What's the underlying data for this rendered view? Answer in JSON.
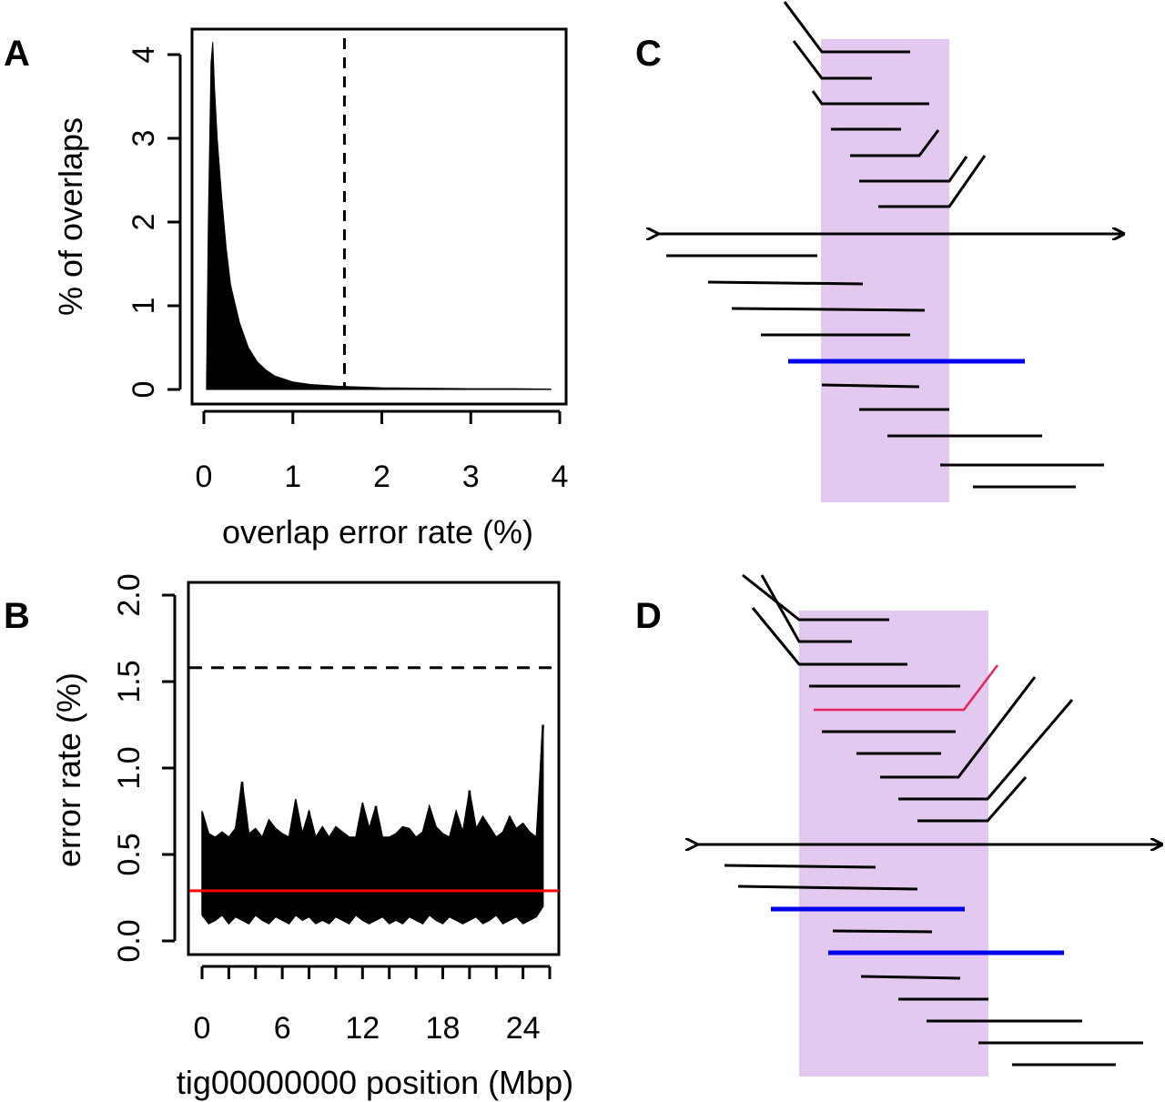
{
  "panels": {
    "A": "A",
    "B": "B",
    "C": "C",
    "D": "D"
  },
  "chart_data": [
    {
      "panel": "A",
      "type": "area",
      "title": "",
      "xlabel": "overlap error rate (%)",
      "ylabel": "% of overlaps",
      "xlim": [
        0,
        4
      ],
      "ylim": [
        0,
        4
      ],
      "xticks": [
        "0",
        "1",
        "2",
        "3",
        "4"
      ],
      "yticks": [
        "0",
        "1",
        "2",
        "3",
        "4"
      ],
      "x": [
        0.03,
        0.05,
        0.08,
        0.1,
        0.12,
        0.15,
        0.2,
        0.25,
        0.3,
        0.4,
        0.5,
        0.6,
        0.7,
        0.8,
        1.0,
        1.2,
        1.5,
        2.0,
        2.5,
        3.0,
        3.5,
        3.9
      ],
      "y": [
        0.1,
        2.0,
        3.9,
        4.15,
        3.6,
        3.0,
        2.3,
        1.7,
        1.25,
        0.8,
        0.5,
        0.33,
        0.23,
        0.16,
        0.09,
        0.06,
        0.04,
        0.02,
        0.015,
        0.01,
        0.01,
        0.005
      ],
      "threshold": {
        "x": 1.58,
        "style": "dashed"
      }
    },
    {
      "panel": "B",
      "type": "line",
      "title": "",
      "xlabel": "tig00000000 position (Mbp)",
      "ylabel": "error rate (%)",
      "xlim": [
        0,
        26
      ],
      "ylim": [
        0,
        2
      ],
      "xticks": [
        "0",
        "6",
        "12",
        "18",
        "24"
      ],
      "yticks": [
        "0.0",
        "0.5",
        "1.0",
        "1.5",
        "2.0"
      ],
      "x": [
        0,
        0.5,
        1,
        1.5,
        2,
        2.5,
        3,
        3.5,
        4,
        4.5,
        5,
        5.5,
        6,
        6.5,
        7,
        7.5,
        8,
        8.5,
        9,
        9.5,
        10,
        10.5,
        11,
        11.5,
        12,
        12.5,
        13,
        13.5,
        14,
        14.5,
        15,
        15.5,
        16,
        16.5,
        17,
        17.5,
        18,
        18.5,
        19,
        19.5,
        20,
        20.5,
        21,
        21.5,
        22,
        22.5,
        23,
        23.5,
        24,
        24.5,
        25,
        25.5
      ],
      "y": [
        0.28,
        0.5,
        0.3,
        0.55,
        0.25,
        0.6,
        0.92,
        0.3,
        0.55,
        0.25,
        0.6,
        0.3,
        0.55,
        0.25,
        0.5,
        0.3,
        0.75,
        0.28,
        0.6,
        0.25,
        0.55,
        0.3,
        0.5,
        0.22,
        0.6,
        0.28,
        0.78,
        0.3,
        0.55,
        0.25,
        0.6,
        0.3,
        0.5,
        0.25,
        0.68,
        0.3,
        0.6,
        0.26,
        0.55,
        0.3,
        0.87,
        0.28,
        0.6,
        0.3,
        0.55,
        0.26,
        0.72,
        0.3,
        0.6,
        0.28,
        0.5,
        1.25
      ],
      "series": [
        {
          "name": "error rate envelope max",
          "values": [
            0.75,
            0.62,
            0.6,
            0.63,
            0.6,
            0.65,
            0.92,
            0.62,
            0.65,
            0.6,
            0.7,
            0.65,
            0.62,
            0.6,
            0.82,
            0.62,
            0.75,
            0.6,
            0.66,
            0.6,
            0.66,
            0.63,
            0.6,
            0.6,
            0.8,
            0.65,
            0.78,
            0.6,
            0.6,
            0.62,
            0.66,
            0.65,
            0.6,
            0.63,
            0.78,
            0.66,
            0.62,
            0.6,
            0.75,
            0.63,
            0.87,
            0.65,
            0.72,
            0.66,
            0.6,
            0.63,
            0.72,
            0.65,
            0.68,
            0.63,
            0.6,
            1.25
          ]
        },
        {
          "name": "error rate envelope min",
          "values": [
            0.15,
            0.1,
            0.12,
            0.15,
            0.1,
            0.14,
            0.12,
            0.1,
            0.15,
            0.12,
            0.1,
            0.14,
            0.12,
            0.1,
            0.15,
            0.12,
            0.14,
            0.1,
            0.12,
            0.1,
            0.14,
            0.12,
            0.1,
            0.15,
            0.12,
            0.1,
            0.12,
            0.14,
            0.1,
            0.12,
            0.1,
            0.14,
            0.12,
            0.1,
            0.15,
            0.12,
            0.1,
            0.14,
            0.12,
            0.1,
            0.12,
            0.14,
            0.1,
            0.12,
            0.15,
            0.1,
            0.12,
            0.14,
            0.1,
            0.12,
            0.14,
            0.2
          ]
        }
      ],
      "mean_line": {
        "y": 0.29,
        "color": "#ff0000"
      },
      "threshold": {
        "y": 1.58,
        "style": "dashed"
      }
    }
  ],
  "diagrams": [
    {
      "panel": "C",
      "region_color": "#e3c9f0"
    },
    {
      "panel": "D",
      "region_color": "#e3c9f0"
    }
  ],
  "colors": {
    "axis": "#000000",
    "mean": "#ff0000",
    "highlight_read": "#0000ee",
    "chimeric_read": "#e8205a",
    "region": "#e3c9f0"
  }
}
